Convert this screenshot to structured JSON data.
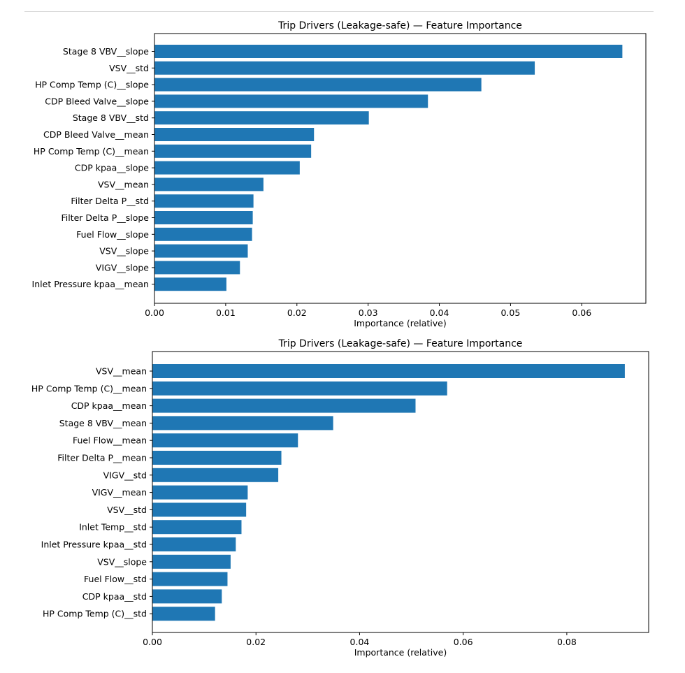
{
  "chart_data": [
    {
      "type": "bar",
      "orientation": "horizontal",
      "title": "Trip Drivers (Leakage-safe) — Feature Importance",
      "xlabel": "Importance (relative)",
      "ylabel": "",
      "xlim": [
        0,
        0.069
      ],
      "xticks": [
        0.0,
        0.01,
        0.02,
        0.03,
        0.04,
        0.05,
        0.06
      ],
      "xtick_labels": [
        "0.00",
        "0.01",
        "0.02",
        "0.03",
        "0.04",
        "0.05",
        "0.06"
      ],
      "color": "#1f77b4",
      "categories": [
        "Stage 8 VBV__slope",
        "VSV__std",
        "HP Comp Temp (C)__slope",
        "CDP Bleed Valve__slope",
        "Stage 8 VBV__std",
        "CDP Bleed Valve__mean",
        "HP Comp Temp (C)__mean",
        "CDP kpaa__slope",
        "VSV__mean",
        "Filter Delta P__std",
        "Filter Delta P__slope",
        "Fuel Flow__slope",
        "VSV__slope",
        "VIGV__slope",
        "Inlet Pressure kpaa__mean"
      ],
      "values": [
        0.0657,
        0.0534,
        0.0459,
        0.0384,
        0.0301,
        0.0224,
        0.022,
        0.0204,
        0.0153,
        0.0139,
        0.0138,
        0.0137,
        0.0131,
        0.012,
        0.0101
      ]
    },
    {
      "type": "bar",
      "orientation": "horizontal",
      "title": "Trip Drivers (Leakage-safe) — Feature Importance",
      "xlabel": "Importance (relative)",
      "ylabel": "",
      "xlim": [
        0,
        0.0958
      ],
      "xticks": [
        0.0,
        0.02,
        0.04,
        0.06,
        0.08
      ],
      "xtick_labels": [
        "0.00",
        "0.02",
        "0.04",
        "0.06",
        "0.08"
      ],
      "color": "#1f77b4",
      "categories": [
        "VSV__mean",
        "HP Comp Temp (C)__mean",
        "CDP kpaa__mean",
        "Stage 8  VBV__mean",
        "Fuel Flow__mean",
        "Filter Delta P__mean",
        "VIGV__std",
        "VIGV__mean",
        "VSV__std",
        "Inlet Temp__std",
        "Inlet Pressure kpaa__std",
        "VSV__slope",
        "Fuel Flow__std",
        "CDP kpaa__std",
        "HP Comp Temp (C)__std"
      ],
      "values": [
        0.0912,
        0.0569,
        0.0508,
        0.0349,
        0.0281,
        0.0249,
        0.0243,
        0.0184,
        0.0181,
        0.0172,
        0.0161,
        0.0151,
        0.0145,
        0.0134,
        0.0121
      ]
    }
  ]
}
